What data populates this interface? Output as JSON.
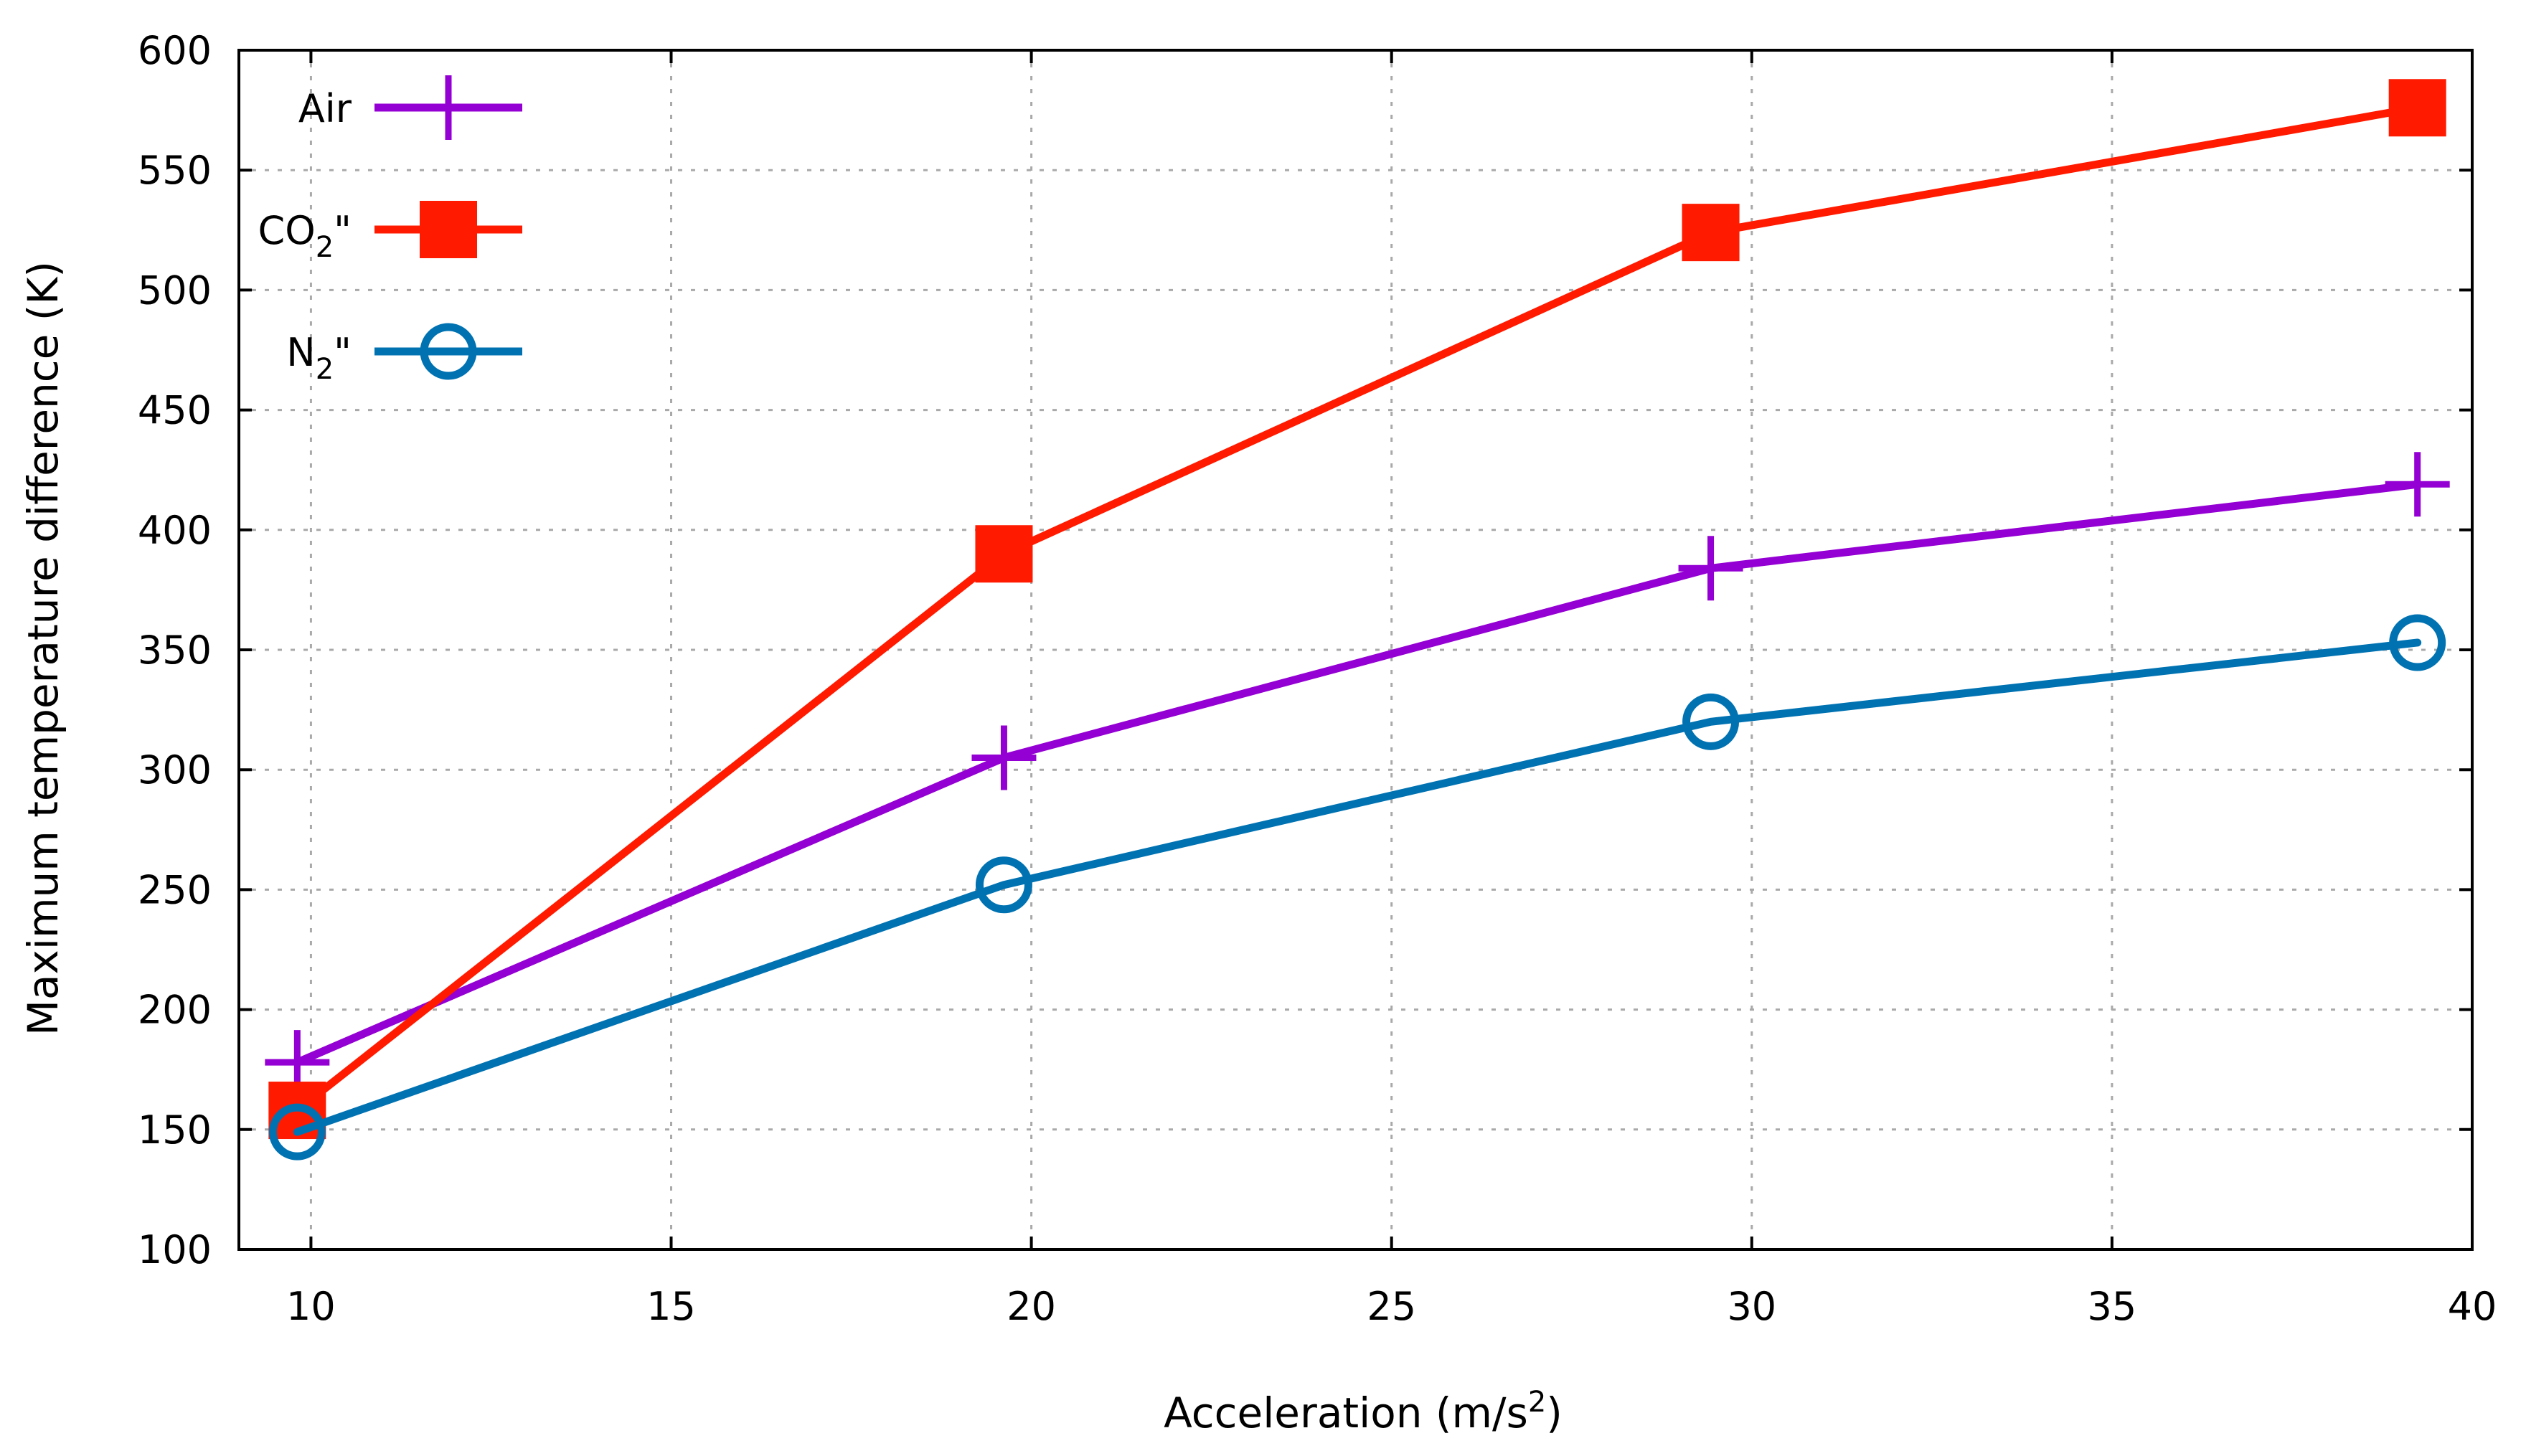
{
  "chart_data": {
    "type": "line",
    "title": "",
    "xlabel": "Acceleration (m/s",
    "xlabel_sup": "2",
    "xlabel_end": ")",
    "ylabel": "Maximum temperature difference (K)",
    "xlim": [
      9,
      40
    ],
    "ylim": [
      100,
      600
    ],
    "xticks": [
      10,
      15,
      20,
      25,
      30,
      35,
      40
    ],
    "yticks": [
      100,
      150,
      200,
      250,
      300,
      350,
      400,
      450,
      500,
      550,
      600
    ],
    "grid": true,
    "legend_position": "top-left",
    "x": [
      9.81,
      19.62,
      29.43,
      39.24
    ],
    "series": [
      {
        "name": "Air",
        "name_parts": [
          "Air"
        ],
        "values": [
          178,
          305,
          384,
          419
        ],
        "color": "#9400d3",
        "marker": "plus"
      },
      {
        "name": "CO2\"",
        "name_parts": [
          "CO",
          "2",
          "\""
        ],
        "values": [
          158,
          390,
          524,
          576
        ],
        "color": "#ff1a00",
        "marker": "square"
      },
      {
        "name": "N2\"",
        "name_parts": [
          "N",
          "2",
          "\""
        ],
        "values": [
          149,
          252,
          320,
          353
        ],
        "color": "#0072b2",
        "marker": "circle"
      }
    ]
  }
}
